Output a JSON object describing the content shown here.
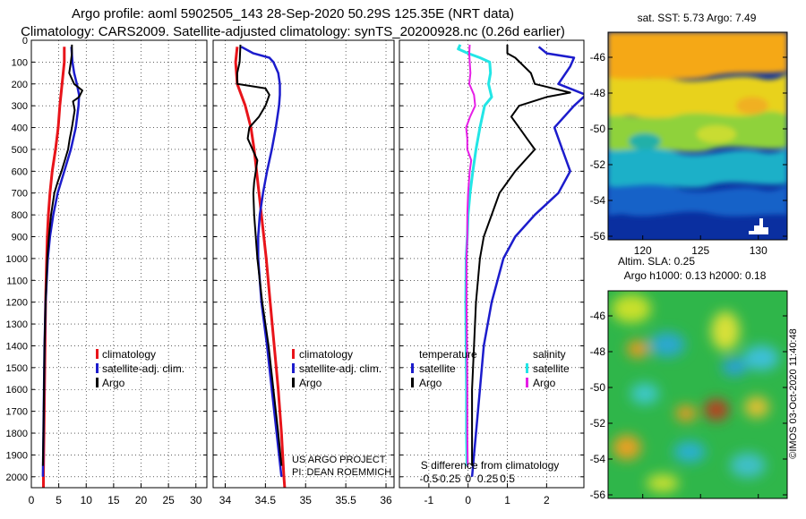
{
  "header": {
    "line1": "Argo profile: aoml 5902505_143 28-Sep-2020 50.29S 125.35E (NRT data)",
    "line2": "Climatology: CARS2009. Satellite-adjusted climatology: synTS_20200928.nc (0.26d earlier)"
  },
  "colors": {
    "climatology": "#e8141a",
    "satellite": "#1c1ccc",
    "argo": "#000000",
    "salinity_satellite": "#22e6e6",
    "salinity_argo": "#e61ee6"
  },
  "credits": {
    "project": "US ARGO PROJECT",
    "pi": "PI: DEAN ROEMMICH",
    "imos": "©IMOS 03-Oct-2020 11:40:48"
  },
  "chart_data": [
    {
      "type": "line",
      "panel": "temperature",
      "y_ticks": [
        "0",
        "100",
        "200",
        "300",
        "400",
        "500",
        "600",
        "700",
        "800",
        "900",
        "1000",
        "1100",
        "1200",
        "1300",
        "1400",
        "1500",
        "1600",
        "1700",
        "1800",
        "1900",
        "2000"
      ],
      "x_ticks": [
        "0",
        "5",
        "10",
        "15",
        "20",
        "25",
        "30"
      ],
      "xlim": [
        0,
        32
      ],
      "ylim": [
        2050,
        0
      ],
      "y_reversed": true,
      "grid": true,
      "legend": [
        "climatology",
        "satellite-adj. clim.",
        "Argo"
      ],
      "series": [
        {
          "name": "climatology",
          "depth": [
            30,
            100,
            200,
            300,
            400,
            500,
            600,
            700,
            800,
            900,
            1000,
            1200,
            1400,
            1600,
            1800,
            2000,
            2050
          ],
          "values": [
            6.0,
            6.0,
            5.6,
            5.2,
            4.9,
            4.4,
            3.8,
            3.4,
            3.1,
            2.9,
            2.8,
            2.6,
            2.5,
            2.4,
            2.3,
            2.2,
            2.2
          ]
        },
        {
          "name": "satellite-adj. clim.",
          "depth": [
            30,
            100,
            150,
            200,
            250,
            300,
            400,
            500,
            600,
            700,
            800,
            900,
            1000,
            1200,
            1400,
            1600,
            1800,
            2000
          ],
          "values": [
            7.3,
            7.5,
            7.8,
            8.3,
            8.7,
            8.6,
            8.1,
            7.2,
            6.0,
            4.8,
            4.0,
            3.4,
            3.0,
            2.6,
            2.4,
            2.3,
            2.2,
            2.1
          ]
        },
        {
          "name": "Argo",
          "depth": [
            20,
            60,
            100,
            150,
            200,
            230,
            260,
            280,
            320,
            400,
            450,
            500,
            550,
            600,
            650,
            700,
            800,
            900,
            1000,
            1200,
            1400,
            1600,
            1800,
            1950
          ],
          "values": [
            7.4,
            7.4,
            7.2,
            6.9,
            7.8,
            9.3,
            8.7,
            7.6,
            7.9,
            7.4,
            7.0,
            6.7,
            6.1,
            5.5,
            4.8,
            4.2,
            3.6,
            3.2,
            2.9,
            2.6,
            2.4,
            2.3,
            2.2,
            2.1
          ]
        }
      ]
    },
    {
      "type": "line",
      "panel": "salinity",
      "x_ticks": [
        "34",
        "34.5",
        "35",
        "35.5",
        "36"
      ],
      "xlim": [
        33.85,
        36.1
      ],
      "ylim": [
        2050,
        0
      ],
      "y_reversed": true,
      "grid": true,
      "legend": [
        "climatology",
        "satellite-adj. clim.",
        "Argo"
      ],
      "series": [
        {
          "name": "climatology",
          "depth": [
            30,
            100,
            200,
            300,
            400,
            500,
            600,
            700,
            800,
            900,
            1000,
            1200,
            1400,
            1600,
            1800,
            2000,
            2050
          ],
          "values": [
            34.15,
            34.13,
            34.15,
            34.25,
            34.32,
            34.36,
            34.39,
            34.42,
            34.45,
            34.48,
            34.51,
            34.56,
            34.61,
            34.66,
            34.7,
            34.73,
            34.74
          ]
        },
        {
          "name": "satellite-adj. clim.",
          "depth": [
            30,
            60,
            80,
            100,
            150,
            200,
            250,
            300,
            400,
            500,
            600,
            700,
            800,
            900,
            1000,
            1200,
            1400,
            1600,
            1800,
            2000
          ],
          "values": [
            34.2,
            34.35,
            34.55,
            34.6,
            34.66,
            34.68,
            34.68,
            34.67,
            34.63,
            34.58,
            34.52,
            34.47,
            34.43,
            34.41,
            34.41,
            34.45,
            34.52,
            34.58,
            34.64,
            34.7
          ]
        },
        {
          "name": "Argo",
          "depth": [
            20,
            100,
            150,
            200,
            220,
            250,
            280,
            300,
            350,
            400,
            450,
            500,
            550,
            600,
            650,
            700,
            800,
            900,
            1000,
            1200,
            1400,
            1600,
            1800,
            1950
          ],
          "values": [
            34.19,
            34.18,
            34.15,
            34.15,
            34.5,
            34.55,
            34.52,
            34.5,
            34.42,
            34.3,
            34.28,
            34.34,
            34.4,
            34.38,
            34.36,
            34.35,
            34.36,
            34.38,
            34.4,
            34.46,
            34.54,
            34.6,
            34.66,
            34.7
          ]
        }
      ]
    },
    {
      "type": "line",
      "panel": "difference",
      "x_ticks_top_label": [
        "-1",
        "0",
        "1",
        "2"
      ],
      "xlim": [
        -1.75,
        2.95
      ],
      "x_ticks_bottom_label": [
        "-0.5",
        "-0.25",
        "0",
        "0.25",
        "0.5"
      ],
      "x2lim": [
        -0.875,
        1.475
      ],
      "xlabel": "S difference from climatology",
      "ylim": [
        2050,
        0
      ],
      "y_reversed": true,
      "grid": true,
      "legend_headers": [
        "temperature",
        "salinity"
      ],
      "legend": [
        "satellite",
        "Argo",
        "satellite",
        "Argo"
      ],
      "series": [
        {
          "name": "satellite",
          "quantity": "temperature",
          "depth": [
            30,
            60,
            80,
            120,
            200,
            250,
            300,
            400,
            500,
            600,
            700,
            800,
            900,
            1000,
            1200,
            1400,
            1600,
            1800,
            2000
          ],
          "values": [
            1.8,
            2.0,
            2.7,
            2.6,
            2.3,
            3.0,
            2.7,
            2.2,
            2.4,
            2.6,
            2.3,
            1.7,
            1.2,
            0.9,
            0.6,
            0.4,
            0.3,
            0.2,
            0.1
          ]
        },
        {
          "name": "Argo",
          "quantity": "temperature",
          "depth": [
            20,
            60,
            80,
            150,
            200,
            240,
            260,
            300,
            350,
            400,
            450,
            500,
            600,
            700,
            800,
            900,
            1000,
            1200,
            1400,
            1600,
            1800,
            1950
          ],
          "values": [
            1.0,
            1.0,
            1.2,
            1.6,
            1.7,
            2.6,
            2.0,
            1.3,
            1.1,
            1.3,
            1.5,
            1.7,
            1.2,
            0.8,
            0.6,
            0.4,
            0.3,
            0.2,
            0.15,
            0.1,
            0.1,
            0.1
          ]
        },
        {
          "name": "satellite",
          "quantity": "salinity",
          "depth": [
            20,
            40,
            60,
            80,
            100,
            150,
            200,
            260,
            300,
            400,
            500,
            600,
            700,
            800,
            900,
            1000,
            1200,
            1400,
            1600,
            1800,
            1950
          ],
          "values": [
            -0.2,
            -0.25,
            0.0,
            0.3,
            0.55,
            0.57,
            0.52,
            0.6,
            0.42,
            0.3,
            0.2,
            0.12,
            0.05,
            0.0,
            -0.02,
            -0.05,
            -0.06,
            -0.05,
            -0.04,
            -0.04,
            -0.03
          ]
        },
        {
          "name": "Argo",
          "quantity": "salinity",
          "depth": [
            20,
            60,
            100,
            150,
            200,
            250,
            300,
            350,
            400,
            450,
            500,
            550,
            600,
            700,
            800,
            900,
            1000,
            1200,
            1400,
            1600,
            1800,
            1950
          ],
          "values": [
            0.04,
            0.03,
            0.04,
            0.06,
            0.03,
            0.15,
            0.18,
            0.05,
            -0.05,
            -0.02,
            -0.02,
            0.08,
            0.04,
            0.0,
            -0.02,
            -0.02,
            -0.04,
            -0.04,
            -0.03,
            -0.02,
            -0.02,
            -0.01
          ]
        }
      ]
    },
    {
      "type": "heatmap",
      "panel": "sat. SST",
      "title": "sat. SST: 5.73 Argo: 7.49",
      "x_ticks": [
        "120",
        "125",
        "130"
      ],
      "y_ticks": [
        "-46",
        "-48",
        "-50",
        "-52",
        "-54",
        "-56"
      ],
      "xlim": [
        117,
        132.5
      ],
      "ylim": [
        -56.2,
        -44.6
      ]
    },
    {
      "type": "heatmap",
      "panel": "Altim. SLA",
      "title": "Altim. SLA: 0.25",
      "subtitle": "Argo h1000: 0.13 h2000: 0.18",
      "y_ticks": [
        "-46",
        "-48",
        "-50",
        "-52",
        "-54",
        "-56"
      ],
      "ylim": [
        -56.2,
        -44.6
      ]
    }
  ]
}
